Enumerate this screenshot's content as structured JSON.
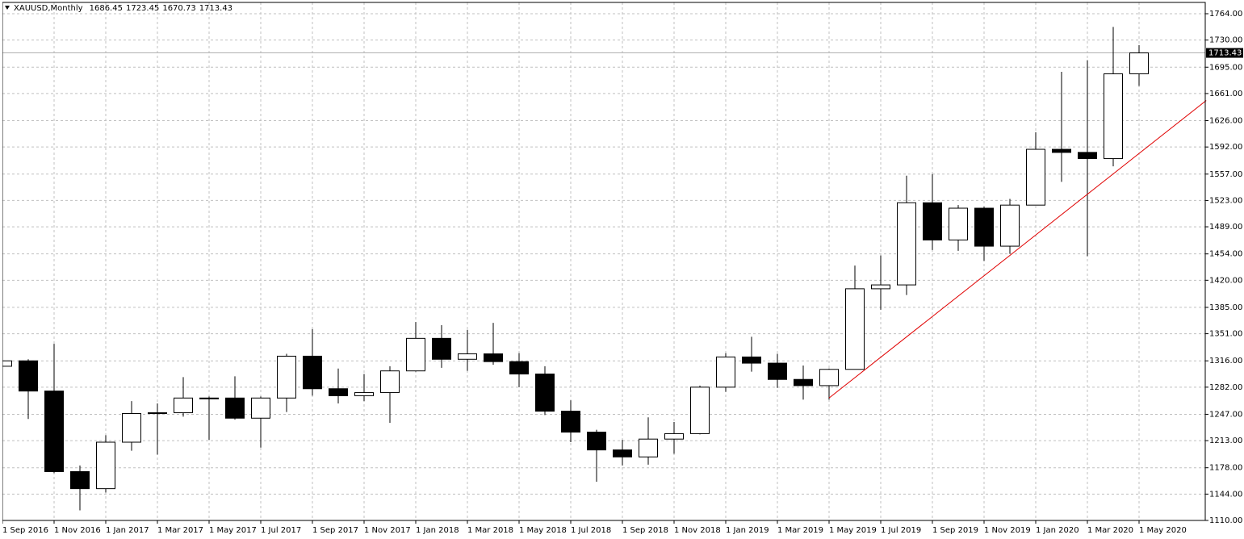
{
  "chart_data": {
    "type": "candlestick",
    "title": "XAUUSD,Monthly",
    "categories": [
      "1 Sep 2016",
      null,
      "1 Nov 2016",
      null,
      "1 Jan 2017",
      null,
      "1 Mar 2017",
      null,
      "1 May 2017",
      null,
      "1 Jul 2017",
      null,
      "1 Sep 2017",
      null,
      "1 Nov 2017",
      null,
      "1 Jan 2018",
      null,
      "1 Mar 2018",
      null,
      "1 May 2018",
      null,
      "1 Jul 2018",
      null,
      "1 Sep 2018",
      null,
      "1 Nov 2018",
      null,
      "1 Jan 2019",
      null,
      "1 Mar 2019",
      null,
      "1 May 2019",
      null,
      "1 Jul 2019",
      null,
      "1 Sep 2019",
      null,
      "1 Nov 2019",
      null,
      "1 Jan 2020",
      null,
      "1 Mar 2020",
      null,
      "1 May 2020"
    ],
    "open": [
      1309,
      1316,
      1277,
      1173,
      1151,
      1211,
      1248,
      1249,
      1268,
      1268,
      1242,
      1268,
      1322,
      1280,
      1271,
      1275,
      1303,
      1345,
      1318,
      1325,
      1315,
      1299,
      1251,
      1224,
      1201,
      1192,
      1215,
      1222,
      1282,
      1321,
      1313,
      1292,
      1284,
      1305,
      1409,
      1414,
      1520,
      1472,
      1513,
      1464,
      1517,
      1589,
      1585,
      1577,
      1686.45
    ],
    "high": [
      1352,
      1318,
      1338,
      1181,
      1220,
      1264,
      1261,
      1295,
      1270,
      1296,
      1270,
      1325,
      1357,
      1306,
      1299,
      1309,
      1366,
      1362,
      1356,
      1365,
      1326,
      1309,
      1265,
      1227,
      1214,
      1243,
      1237,
      1284,
      1326,
      1347,
      1325,
      1310,
      1306,
      1439,
      1452,
      1555,
      1557,
      1517,
      1515,
      1525,
      1611,
      1689,
      1704,
      1747,
      1723.45
    ],
    "low": [
      1304,
      1241,
      1171,
      1123,
      1146,
      1200,
      1195,
      1244,
      1214,
      1240,
      1204,
      1250,
      1271,
      1261,
      1264,
      1236,
      1302,
      1307,
      1303,
      1311,
      1282,
      1246,
      1211,
      1160,
      1181,
      1182,
      1196,
      1221,
      1276,
      1302,
      1281,
      1266,
      1266,
      1305,
      1382,
      1401,
      1459,
      1458,
      1445,
      1454,
      1517,
      1547,
      1451,
      1567,
      1670.73
    ],
    "close": [
      1316,
      1277,
      1173,
      1151,
      1211,
      1248,
      1249,
      1268,
      1268,
      1242,
      1268,
      1322,
      1280,
      1271,
      1275,
      1303,
      1345,
      1318,
      1325,
      1315,
      1299,
      1251,
      1224,
      1201,
      1192,
      1215,
      1222,
      1282,
      1321,
      1313,
      1292,
      1284,
      1305,
      1409,
      1414,
      1520,
      1472,
      1513,
      1464,
      1517,
      1589,
      1585,
      1577,
      1686.45,
      1713.43
    ],
    "bull_color": "#ffffff",
    "bear_color": "#000000",
    "ylim": [
      1110,
      1764
    ],
    "yticks": [
      {
        "value": 1110,
        "label": "1110.00"
      },
      {
        "value": 1144,
        "label": "1144.00"
      },
      {
        "value": 1178,
        "label": "1178.00"
      },
      {
        "value": 1213,
        "label": "1213.00"
      },
      {
        "value": 1247,
        "label": "1247.00"
      },
      {
        "value": 1282,
        "label": "1282.00"
      },
      {
        "value": 1316,
        "label": "1316.00"
      },
      {
        "value": 1351,
        "label": "1351.00"
      },
      {
        "value": 1385,
        "label": "1385.00"
      },
      {
        "value": 1420,
        "label": "1420.00"
      },
      {
        "value": 1454,
        "label": "1454.00"
      },
      {
        "value": 1489,
        "label": "1489.00"
      },
      {
        "value": 1523,
        "label": "1523.00"
      },
      {
        "value": 1557,
        "label": "1557.00"
      },
      {
        "value": 1592,
        "label": "1592.00"
      },
      {
        "value": 1626,
        "label": "1626.00"
      },
      {
        "value": 1661,
        "label": "1661.00"
      },
      {
        "value": 1695,
        "label": "1695.00"
      },
      {
        "value": 1730,
        "label": "1730.00"
      },
      {
        "value": 1764,
        "label": "1764.00"
      }
    ],
    "grid": true,
    "trendline": {
      "color": "#e00000",
      "points": [
        [
          32,
          1268
        ],
        [
          46.6,
          1652
        ]
      ]
    }
  }
}
